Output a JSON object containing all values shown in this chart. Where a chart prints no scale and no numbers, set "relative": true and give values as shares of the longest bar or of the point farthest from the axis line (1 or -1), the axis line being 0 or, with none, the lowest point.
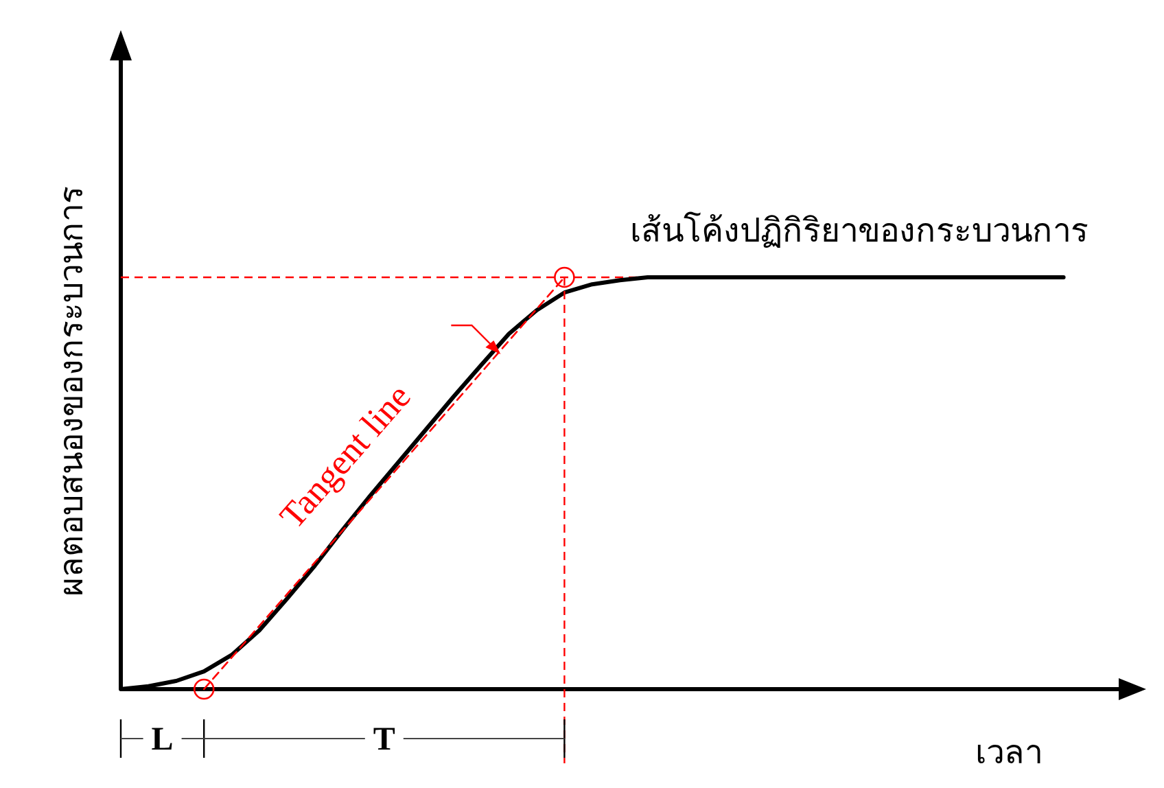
{
  "chart_data": {
    "type": "line",
    "relative": true,
    "xlabel": "เวลา",
    "ylabel": "ผลตอบสนองของกระบวนการ",
    "categories": [
      null,
      null,
      null,
      null,
      null,
      null,
      null,
      null,
      null,
      null,
      null,
      null,
      null,
      null,
      null,
      null,
      null,
      null,
      null,
      null,
      null,
      null,
      null,
      null,
      null,
      null,
      null,
      null,
      null,
      null,
      null,
      null,
      null,
      null,
      null
    ],
    "series": [
      {
        "name": "เส้นโค้งปฏิกิริยาของกระบวนการ",
        "color": "#000000",
        "line_style": "solid",
        "values": [
          0,
          0.007,
          0.02,
          0.043,
          0.083,
          0.143,
          0.22,
          0.3,
          0.387,
          0.47,
          0.55,
          0.63,
          0.71,
          0.787,
          0.863,
          0.92,
          0.963,
          0.983,
          0.993,
          1,
          1,
          1,
          1,
          1,
          1,
          1,
          1,
          1,
          1,
          1,
          1,
          1,
          1,
          1,
          1
        ]
      },
      {
        "name": "Tangent line",
        "color": "#ff0000",
        "line_style": "dashed",
        "values": [
          null,
          null,
          null,
          0,
          0.077,
          0.154,
          0.231,
          0.308,
          0.385,
          0.462,
          0.538,
          0.615,
          0.692,
          0.769,
          0.846,
          0.923,
          1,
          null,
          null,
          null,
          null,
          null,
          null,
          null,
          null,
          null,
          null,
          null,
          null,
          null,
          null,
          null,
          null,
          null,
          null
        ]
      }
    ],
    "ref_lines": [
      {
        "axis": "y",
        "value": 1,
        "color": "#ff0000",
        "line_style": "dashed"
      }
    ],
    "annotations": [
      "L",
      "T"
    ]
  }
}
